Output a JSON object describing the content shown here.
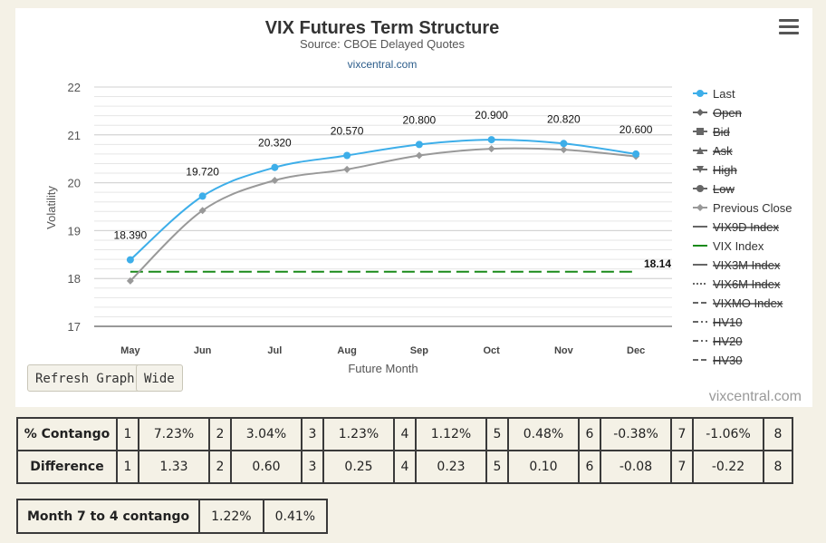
{
  "chart_data": {
    "type": "line",
    "title": "VIX Futures Term Structure",
    "subtitle": "Source: CBOE Delayed Quotes",
    "link_text": "vixcentral.com",
    "xlabel": "Future Month",
    "ylabel": "Volatility",
    "categories": [
      "May",
      "Jun",
      "Jul",
      "Aug",
      "Sep",
      "Oct",
      "Nov",
      "Dec"
    ],
    "ylim": [
      17,
      22
    ],
    "yticks": [
      17,
      18,
      19,
      20,
      21,
      22
    ],
    "grid": true,
    "legend_position": "right",
    "series": [
      {
        "name": "Last",
        "values": [
          18.39,
          19.72,
          20.32,
          20.57,
          20.8,
          20.9,
          20.82,
          20.6
        ],
        "labels": [
          "18.390",
          "19.720",
          "20.320",
          "20.570",
          "20.800",
          "20.900",
          "20.820",
          "20.600"
        ],
        "color": "#3daee9"
      },
      {
        "name": "Previous Close",
        "values": [
          17.95,
          19.42,
          20.05,
          20.28,
          20.57,
          20.71,
          20.69,
          20.55
        ],
        "color": "#999999"
      },
      {
        "name": "VIX Index",
        "constant": 18.14,
        "label": "18.14",
        "color": "#1a8a1a"
      }
    ],
    "legend": [
      {
        "name": "Last",
        "marker": "circle",
        "color": "#3daee9",
        "hidden": false
      },
      {
        "name": "Open",
        "marker": "diamond",
        "color": "#555555",
        "hidden": true
      },
      {
        "name": "Bid",
        "marker": "square",
        "color": "#555555",
        "hidden": true
      },
      {
        "name": "Ask",
        "marker": "triangle",
        "color": "#555555",
        "hidden": true
      },
      {
        "name": "High",
        "marker": "triangle-down",
        "color": "#555555",
        "hidden": true
      },
      {
        "name": "Low",
        "marker": "circle",
        "color": "#555555",
        "hidden": true
      },
      {
        "name": "Previous Close",
        "marker": "diamond",
        "color": "#999999",
        "hidden": false
      },
      {
        "name": "VIX9D Index",
        "marker": "line",
        "color": "#555555",
        "hidden": true
      },
      {
        "name": "VIX Index",
        "marker": "line",
        "color": "#1a8a1a",
        "hidden": false
      },
      {
        "name": "VIX3M Index",
        "marker": "line",
        "color": "#777777",
        "hidden": true
      },
      {
        "name": "VIX6M Index",
        "marker": "dotted",
        "color": "#555555",
        "hidden": true
      },
      {
        "name": "VIXMO Index",
        "marker": "dashed",
        "color": "#555555",
        "hidden": true
      },
      {
        "name": "HV10",
        "marker": "dashdot",
        "color": "#555555",
        "hidden": true
      },
      {
        "name": "HV20",
        "marker": "dashdot",
        "color": "#555555",
        "hidden": true
      },
      {
        "name": "HV30",
        "marker": "dashed",
        "color": "#555555",
        "hidden": true
      }
    ]
  },
  "buttons": {
    "refresh": "Refresh Graph",
    "wide": "Wide"
  },
  "credit": "vixcentral.com",
  "contango_table": {
    "rows": [
      {
        "label": "% Contango",
        "cells": [
          {
            "n": "1",
            "v": "7.23%"
          },
          {
            "n": "2",
            "v": "3.04%"
          },
          {
            "n": "3",
            "v": "1.23%"
          },
          {
            "n": "4",
            "v": "1.12%"
          },
          {
            "n": "5",
            "v": "0.48%"
          },
          {
            "n": "6",
            "v": "-0.38%"
          },
          {
            "n": "7",
            "v": "-1.06%"
          }
        ],
        "last": "8"
      },
      {
        "label": "Difference",
        "cells": [
          {
            "n": "1",
            "v": "1.33"
          },
          {
            "n": "2",
            "v": "0.60"
          },
          {
            "n": "3",
            "v": "0.25"
          },
          {
            "n": "4",
            "v": "0.23"
          },
          {
            "n": "5",
            "v": "0.10"
          },
          {
            "n": "6",
            "v": "-0.08"
          },
          {
            "n": "7",
            "v": "-0.22"
          }
        ],
        "last": "8"
      }
    ]
  },
  "summary_table": {
    "label": "Month 7 to 4 contango",
    "values": [
      "1.22%",
      "0.41%"
    ]
  }
}
